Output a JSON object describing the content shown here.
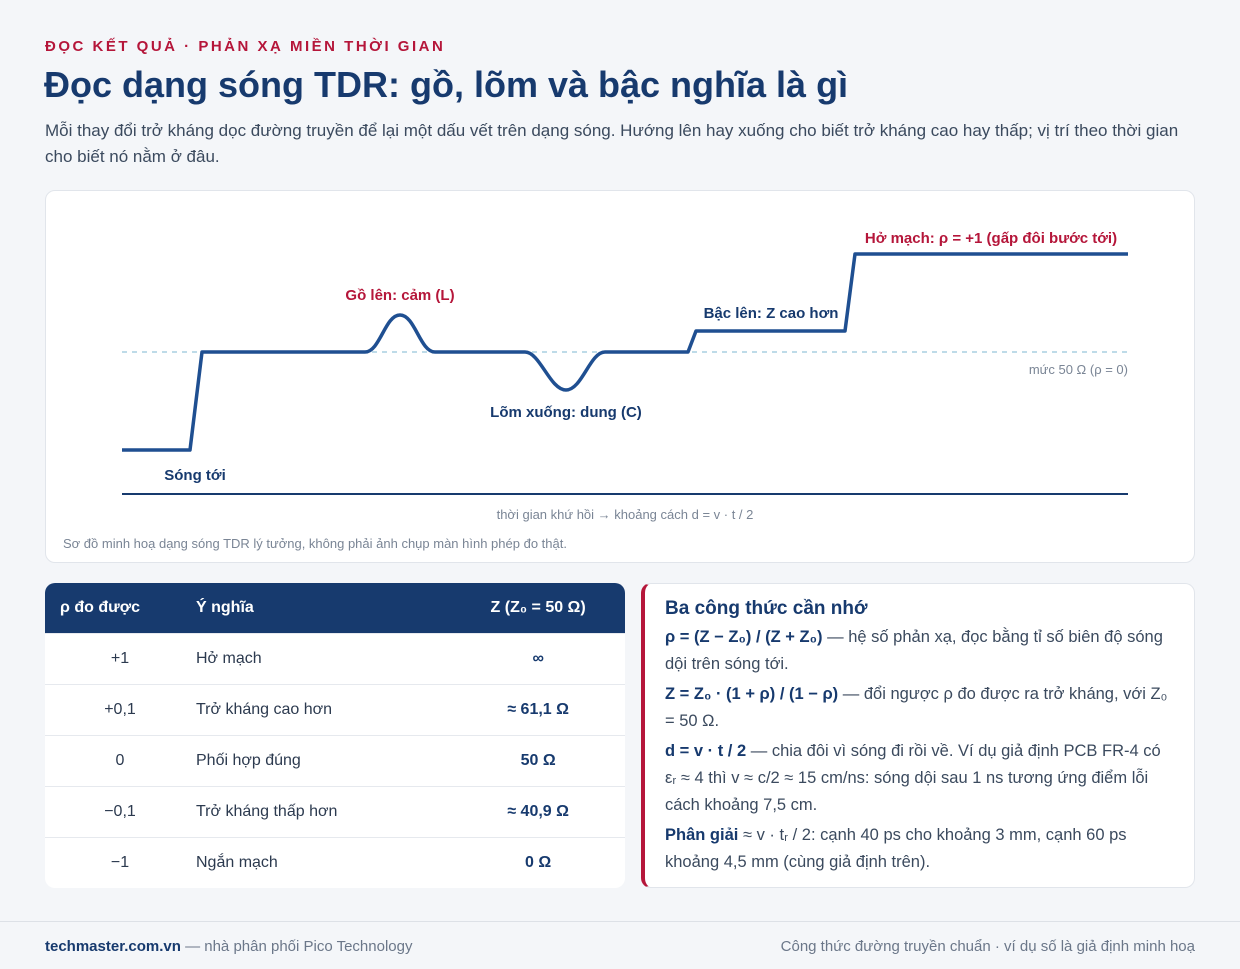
{
  "header": {
    "eyebrow": "ĐỌC KẾT QUẢ · PHẢN XẠ MIỀN THỜI GIAN",
    "title": "Đọc dạng sóng TDR: gồ, lõm và bậc nghĩa là gì",
    "subtitle": "Mỗi thay đổi trở kháng dọc đường truyền để lại một dấu vết trên dạng sóng. Hướng lên hay xuống cho biết trở kháng cao hay thấp; vị trí theo thời gian cho biết nó nằm ở đâu."
  },
  "diagram": {
    "open": "Hở mạch: ρ = +1 (gấp đôi bước tới)",
    "bump": "Gồ lên: cảm (L)",
    "step": "Bậc lên: Z cao hơn",
    "reference": "mức 50 Ω (ρ = 0)",
    "dip": "Lõm xuống: dung (C)",
    "incident": "Sóng tới",
    "axis": "thời gian khứ hồi → khoảng cách d = v · t / 2",
    "note": "Sơ đồ minh hoạ dạng sóng TDR lý tưởng, không phải ảnh chụp màn hình phép đo thật."
  },
  "table": {
    "columns": [
      "ρ đo được",
      "Ý nghĩa",
      "Z (Z₀ = 50 Ω)"
    ],
    "rows": [
      [
        "+1",
        "Hở mạch",
        "∞"
      ],
      [
        "+0,1",
        "Trở kháng cao hơn",
        "≈ 61,1 Ω"
      ],
      [
        "0",
        "Phối hợp đúng",
        "50 Ω"
      ],
      [
        "−0,1",
        "Trở kháng thấp hơn",
        "≈ 40,9 Ω"
      ],
      [
        "−1",
        "Ngắn mạch",
        "0 Ω"
      ]
    ]
  },
  "formulas": {
    "title": "Ba công thức cần nhớ",
    "items": [
      {
        "formula": "ρ = (Z − Z₀) / (Z + Z₀)",
        "text": "— hệ số phản xạ, đọc bằng tỉ số biên độ sóng dội trên sóng tới."
      },
      {
        "formula": "Z = Z₀ · (1 + ρ) / (1 − ρ)",
        "text": "— đổi ngược ρ đo được ra trở kháng, với Z₀ = 50 Ω."
      },
      {
        "formula": "d = v · t / 2",
        "text": "— chia đôi vì sóng đi rồi về. Ví dụ giả định PCB FR-4 có εᵣ ≈ 4 thì v ≈ c/2 ≈ 15 cm/ns: sóng dội sau 1 ns tương ứng điểm lỗi cách khoảng 7,5 cm."
      },
      {
        "formula": "Phân giải",
        "text": "≈ v · tᵣ / 2: cạnh 40 ps cho khoảng 3 mm, cạnh 60 ps khoảng 4,5 mm (cùng giả định trên)."
      }
    ]
  },
  "footer": {
    "brand": "techmaster.com.vn",
    "tagline": "— nhà phân phối Pico Technology",
    "right": "Công thức đường truyền chuẩn · ví dụ số là giả định minh hoạ"
  }
}
